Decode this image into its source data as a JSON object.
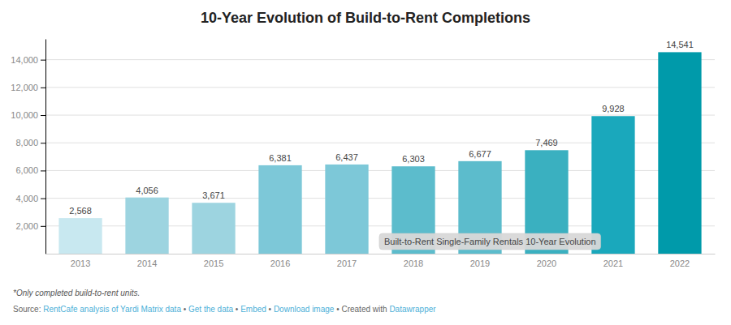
{
  "chart_data": {
    "type": "bar",
    "title": "10-Year Evolution of Build-to-Rent Completions",
    "categories": [
      "2013",
      "2014",
      "2015",
      "2016",
      "2017",
      "2018",
      "2019",
      "2020",
      "2021",
      "2022"
    ],
    "values": [
      2568,
      4056,
      3671,
      6381,
      6437,
      6303,
      6677,
      7469,
      9928,
      14541
    ],
    "value_labels": [
      "2,568",
      "4,056",
      "3,671",
      "6,381",
      "6,437",
      "6,303",
      "6,677",
      "7,469",
      "9,928",
      "14,541"
    ],
    "data_labels": true,
    "colors": [
      "#c8e8f0",
      "#9dd4e0",
      "#9dd4e0",
      "#7dc8d8",
      "#7dc8d8",
      "#5cbccc",
      "#5cbccc",
      "#3ab0c0",
      "#1aa8bc",
      "#009aaa"
    ],
    "ylim": [
      0,
      15500
    ],
    "yticks": [
      {
        "value": 2000,
        "label": "2,000"
      },
      {
        "value": 4000,
        "label": "4,000"
      },
      {
        "value": 6000,
        "label": "6,000"
      },
      {
        "value": 8000,
        "label": "8,000"
      },
      {
        "value": 10000,
        "label": "10,000"
      },
      {
        "value": 12000,
        "label": "12,000"
      },
      {
        "value": 14000,
        "label": "14,000"
      }
    ],
    "grid": true,
    "annotations": [
      "Built-to-Rent Single-Family Rentals 10-Year Evolution",
      "*Only completed build-to-rent units."
    ],
    "source": [
      {
        "text": "Source: "
      },
      {
        "text": "RentCafe analysis of Yardi Matrix data",
        "color": "#4db0d8"
      },
      {
        "text": " • "
      },
      {
        "text": "Get the data",
        "color": "#4db0d8"
      },
      {
        "text": " • "
      },
      {
        "text": "Embed",
        "color": "#4db0d8"
      },
      {
        "text": " • "
      },
      {
        "text": "Download image",
        "color": "#4db0d8"
      },
      {
        "text": " • Created with "
      },
      {
        "text": "Datawrapper",
        "color": "#4db0d8"
      }
    ]
  }
}
